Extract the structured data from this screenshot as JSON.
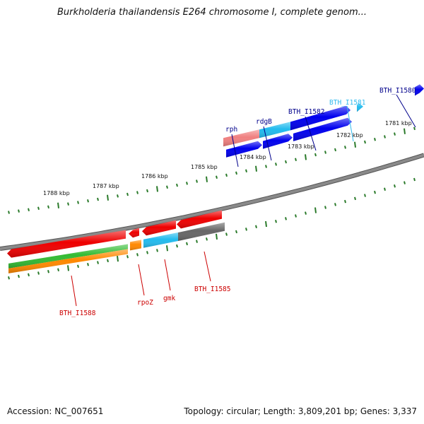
{
  "title": "Burkholderia thailandensis E264 chromosome I, complete genom...",
  "footer": {
    "accession": "Accession: NC_007651",
    "stats": "Topology: circular; Length: 3,809,201 bp; Genes: 3,337"
  },
  "colors": {
    "backbone": "#8a8a8a",
    "tick": "#2a7a2a",
    "red": "#ee0000",
    "pink": "#f08080",
    "blue": "#0000ee",
    "cyan": "#22bbee",
    "green": "#33bb33",
    "orange": "#ff8800",
    "gray": "#666666",
    "label_blue": "#00008b",
    "label_cyan": "#33bbee",
    "label_red": "#cc0000"
  },
  "scale_labels": [
    "1788 kbp",
    "1787 kbp",
    "1786 kbp",
    "1785 kbp",
    "1784 kbp",
    "1783 kbp",
    "1782 kbp",
    "1781 kbp"
  ],
  "gene_labels_top": [
    {
      "text": "rph",
      "color": "label_blue"
    },
    {
      "text": "rdgB",
      "color": "label_blue"
    },
    {
      "text": "BTH_I1582",
      "color": "label_blue"
    },
    {
      "text": "BTH_I1581",
      "color": "label_cyan"
    },
    {
      "text": "BTH_I1580",
      "color": "label_blue"
    }
  ],
  "gene_labels_bottom": [
    {
      "text": "BTH_I1588",
      "color": "label_red"
    },
    {
      "text": "rpoZ",
      "color": "label_red"
    },
    {
      "text": "gmk",
      "color": "label_red"
    },
    {
      "text": "BTH_I1585",
      "color": "label_red"
    }
  ]
}
